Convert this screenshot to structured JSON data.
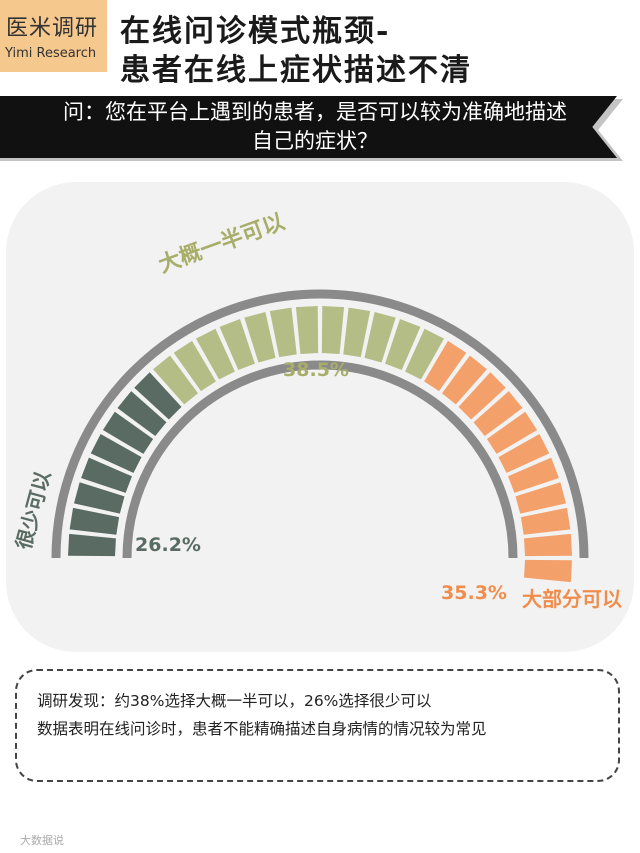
{
  "logo": {
    "cn": "医米调研",
    "en": "Yimi Research"
  },
  "title": {
    "line1": "在线问诊模式瓶颈-",
    "line2": "患者在线上症状描述不清"
  },
  "question": {
    "line1": "问：您在平台上遇到的患者，是否可以较为准确地描述",
    "line2": "自己的症状？"
  },
  "chart_data": {
    "type": "gauge",
    "categories": [
      "很少可以",
      "大概一半可以",
      "大部分可以"
    ],
    "values": [
      26.2,
      38.5,
      35.3
    ],
    "value_labels": [
      "26.2%",
      "38.5%",
      "35.3%"
    ],
    "unit": "%",
    "colors": [
      "#5a6b63",
      "#b5bd87",
      "#f4a06a"
    ],
    "label_colors": [
      "#5a6b63",
      "#a8ae6a",
      "#f08d4c"
    ]
  },
  "findings": {
    "line1": "调研发现：约38%选择大概一半可以，26%选择很少可以",
    "line2": "数据表明在线问诊时，患者不能精确描述自身病情的情况较为常见"
  },
  "watermark": "大数据说"
}
